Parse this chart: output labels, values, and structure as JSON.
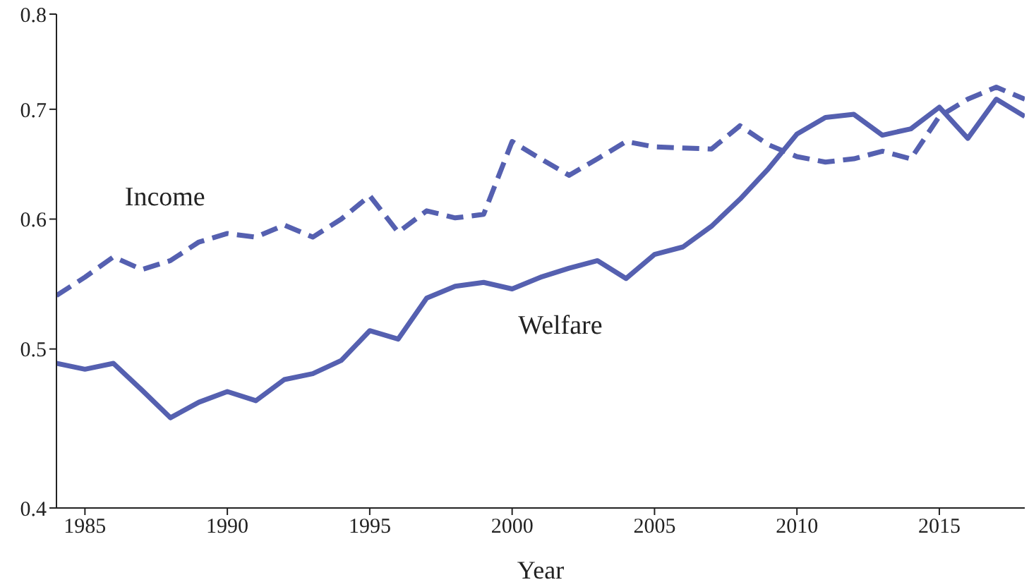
{
  "chart_data": {
    "type": "line",
    "xlabel": "Year",
    "log": "y",
    "grid": false,
    "legend": false,
    "marker": "none",
    "x": [
      1984,
      1985,
      1986,
      1987,
      1988,
      1989,
      1990,
      1991,
      1992,
      1993,
      1994,
      1995,
      1996,
      1997,
      1998,
      1999,
      2000,
      2001,
      2002,
      2003,
      2004,
      2005,
      2006,
      2007,
      2008,
      2009,
      2010,
      2011,
      2012,
      2013,
      2014,
      2015,
      2016,
      2017,
      2018
    ],
    "series": [
      {
        "name": "Income",
        "color": "#5560b0",
        "line_style": "dashed",
        "values": [
          0.539,
          0.553,
          0.569,
          0.559,
          0.566,
          0.581,
          0.588,
          0.585,
          0.595,
          0.585,
          0.6,
          0.62,
          0.589,
          0.607,
          0.601,
          0.604,
          0.669,
          0.653,
          0.638,
          0.653,
          0.669,
          0.664,
          0.663,
          0.662,
          0.684,
          0.666,
          0.655,
          0.65,
          0.653,
          0.66,
          0.653,
          0.693,
          0.71,
          0.722,
          0.71
        ]
      },
      {
        "name": "Welfare",
        "color": "#5560b0",
        "line_style": "solid",
        "values": [
          0.49,
          0.486,
          0.49,
          0.472,
          0.454,
          0.464,
          0.471,
          0.465,
          0.479,
          0.483,
          0.492,
          0.513,
          0.507,
          0.537,
          0.546,
          0.549,
          0.544,
          0.553,
          0.56,
          0.566,
          0.552,
          0.571,
          0.577,
          0.594,
          0.617,
          0.644,
          0.676,
          0.692,
          0.695,
          0.675,
          0.681,
          0.702,
          0.672,
          0.71,
          0.693
        ]
      }
    ],
    "xlim": [
      1984,
      2018
    ],
    "xticks": [
      1985,
      1990,
      1995,
      2000,
      2005,
      2010,
      2015
    ],
    "ylim": [
      0.4,
      0.8
    ],
    "yticks": [
      0.4,
      0.5,
      0.6,
      0.7,
      0.8
    ]
  }
}
